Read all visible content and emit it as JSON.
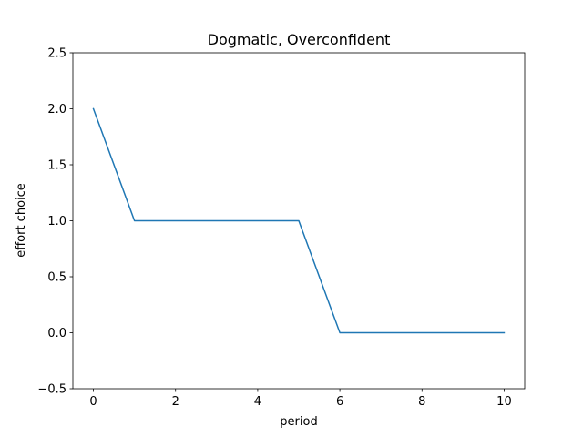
{
  "chart_data": {
    "type": "line",
    "title": "Dogmatic, Overconfident",
    "xlabel": "period",
    "ylabel": "effort choice",
    "xlim": [
      -0.5,
      10.5
    ],
    "ylim": [
      -0.5,
      2.5
    ],
    "xticks": [
      0,
      2,
      4,
      6,
      8,
      10
    ],
    "xtick_labels": [
      "0",
      "2",
      "4",
      "6",
      "8",
      "10"
    ],
    "yticks": [
      -0.5,
      0.0,
      0.5,
      1.0,
      1.5,
      2.0,
      2.5
    ],
    "ytick_labels": [
      "−0.5",
      "0.0",
      "0.5",
      "1.0",
      "1.5",
      "2.0",
      "2.5"
    ],
    "grid": false,
    "series": [
      {
        "x": [
          0,
          1,
          2,
          3,
          4,
          5,
          6,
          7,
          8,
          9,
          10
        ],
        "values": [
          2,
          1,
          1,
          1,
          1,
          1,
          0,
          0,
          0,
          0,
          0
        ],
        "color": "#1f77b4"
      }
    ]
  }
}
